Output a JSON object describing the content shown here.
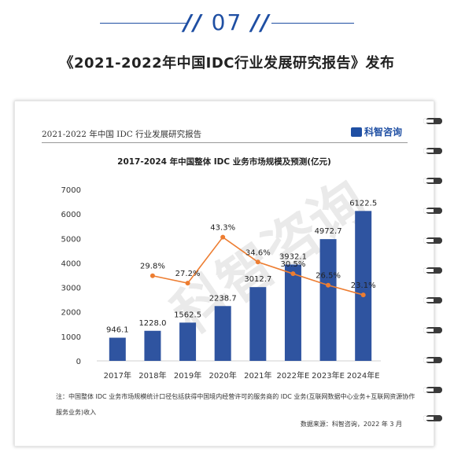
{
  "header": {
    "number": "07",
    "title": "《2021-2022年中国IDC行业发展研究报告》发布"
  },
  "card": {
    "report_title": "2021-2022 年中国 IDC 行业发展研究报告",
    "brand": "科智咨询",
    "note": "注：中国整体 IDC 业务市场规模统计口径包括获得中国境内经营许可的服务商的 IDC 业务(互联网数据中心业务+互联网资源协作服务业务)收入",
    "source": "数据来源：科智咨询，2022 年 3 月"
  },
  "colors": {
    "bar": "#2f54a0",
    "line": "#ed7d31",
    "accent": "#1f4fa3"
  },
  "chart_data": {
    "type": "bar",
    "title": "2017-2024 年中国整体 IDC 业务市场规模及预测(亿元)",
    "categories": [
      "2017年",
      "2018年",
      "2019年",
      "2020年",
      "2021年",
      "2022年E",
      "2023年E",
      "2024年E"
    ],
    "values": [
      946.1,
      1228.0,
      1562.5,
      2238.7,
      3012.7,
      3932.1,
      4972.7,
      6122.5
    ],
    "value_labels": [
      "946.1",
      "1228.0",
      "1562.5",
      "2238.7",
      "3012.7",
      "3932.1",
      "4972.7",
      "6122.5"
    ],
    "growth": [
      null,
      29.8,
      27.2,
      43.3,
      34.6,
      30.5,
      26.5,
      23.1
    ],
    "growth_labels": [
      "",
      "29.8%",
      "27.2%",
      "43.3%",
      "34.6%",
      "30.5%",
      "26.5%",
      "23.1%"
    ],
    "y_ticks": [
      "0",
      "1000",
      "2000",
      "3000",
      "4000",
      "5000",
      "6000",
      "7000"
    ],
    "ylim": [
      0,
      7000
    ],
    "growth_axis_hidden_range": [
      0,
      60
    ]
  }
}
